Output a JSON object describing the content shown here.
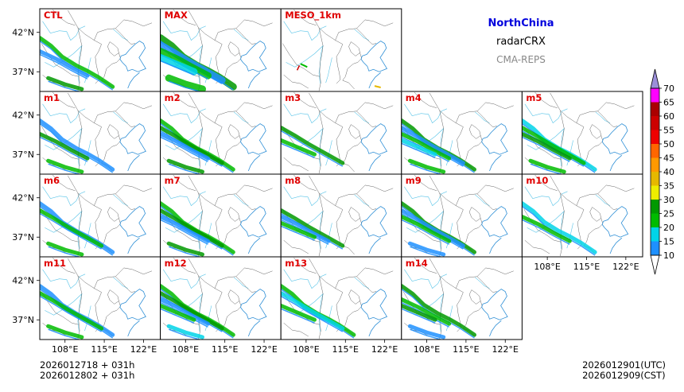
{
  "header": {
    "region": "NorthChina",
    "variable": "radarCRX",
    "model": "CMA-REPS",
    "region_color": "#0000dd",
    "model_color": "#888888"
  },
  "footer": {
    "init_utc": "2026012718  +  031h",
    "init_cst": "2026012802  +  031h",
    "valid_utc": "2026012901(UTC)",
    "valid_cst": "2026012909(CST)"
  },
  "chart_data": {
    "type": "heatmap",
    "panel_label_color": "#e00000",
    "panels": [
      [
        "CTL",
        "MAX",
        "MESO_1km"
      ],
      [
        "m1",
        "m2",
        "m3",
        "m4",
        "m5"
      ],
      [
        "m6",
        "m7",
        "m8",
        "m9",
        "m10"
      ],
      [
        "m11",
        "m12",
        "m13",
        "m14"
      ]
    ],
    "xticks": [
      "108°E",
      "115°E",
      "122°E"
    ],
    "xtick_values": [
      108,
      115,
      122
    ],
    "yticks": [
      "42°N",
      "37°N"
    ],
    "ytick_values": [
      42,
      37
    ],
    "lon_range": [
      103.5,
      125
    ],
    "lat_range": [
      34.5,
      45
    ],
    "colorbar": {
      "levels": [
        "10",
        "15",
        "20",
        "25",
        "30",
        "35",
        "40",
        "45",
        "50",
        "55",
        "60",
        "65",
        "70"
      ],
      "colors": [
        "#1e90ff",
        "#00d4e8",
        "#00bb00",
        "#009900",
        "#eeee00",
        "#e6b800",
        "#ff9900",
        "#ff6600",
        "#ee0000",
        "#cc0000",
        "#aa0000",
        "#ff00ff",
        "#9900cc"
      ],
      "under_color": "#ffffff",
      "over_color": "#9a8ed9"
    }
  }
}
